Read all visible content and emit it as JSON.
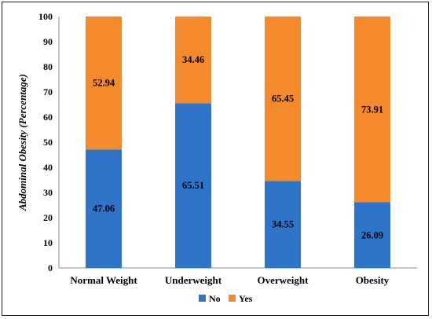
{
  "chart_data": {
    "type": "bar",
    "stacked": true,
    "categories": [
      "Normal Weight",
      "Underweight",
      "Overweight",
      "Obesity"
    ],
    "series": [
      {
        "name": "No",
        "color": "#2E75C9",
        "values": [
          47.06,
          65.51,
          34.55,
          26.09
        ]
      },
      {
        "name": "Yes",
        "color": "#F58A2D",
        "values": [
          52.94,
          34.46,
          65.45,
          73.91
        ]
      }
    ],
    "ylabel": "Abdominal Obesity (Percentage)",
    "ylim": [
      0,
      100
    ],
    "yticks": [
      0,
      10,
      20,
      30,
      40,
      50,
      60,
      70,
      80,
      90,
      100
    ],
    "grid": false,
    "legend": "bottom"
  }
}
